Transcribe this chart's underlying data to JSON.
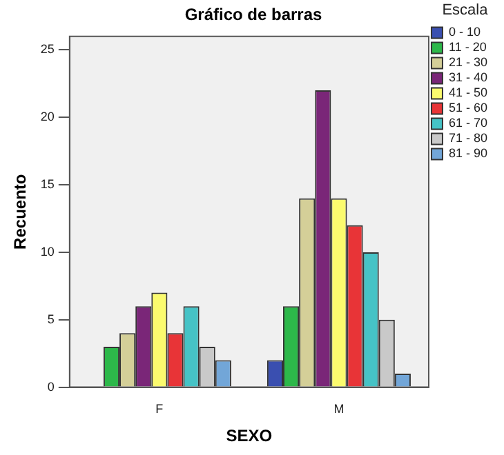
{
  "chart_data": {
    "type": "bar",
    "title": "Gráfico de barras",
    "xlabel": "SEXO",
    "ylabel": "Recuento",
    "legend_title": "Escala",
    "categories": [
      "F",
      "M"
    ],
    "series": [
      {
        "name": "0 - 10",
        "color": "#3a4fb0",
        "values": [
          null,
          2
        ]
      },
      {
        "name": "11 - 20",
        "color": "#2db84a",
        "values": [
          3,
          6
        ]
      },
      {
        "name": "21 - 30",
        "color": "#d4cf98",
        "values": [
          4,
          14
        ]
      },
      {
        "name": "31 - 40",
        "color": "#7a2678",
        "values": [
          6,
          22
        ]
      },
      {
        "name": "41 - 50",
        "color": "#fbfb6e",
        "values": [
          7,
          14
        ]
      },
      {
        "name": "51 - 60",
        "color": "#e83437",
        "values": [
          4,
          12
        ]
      },
      {
        "name": "61 - 70",
        "color": "#46c3c6",
        "values": [
          6,
          10
        ]
      },
      {
        "name": "71 - 80",
        "color": "#c9c9c9",
        "values": [
          3,
          5
        ]
      },
      {
        "name": "81 - 90",
        "color": "#72a6d8",
        "values": [
          2,
          1
        ]
      }
    ],
    "ylim": [
      0,
      26
    ],
    "yticks": [
      0,
      5,
      10,
      15,
      20,
      25
    ],
    "grid": false,
    "legend": "right"
  }
}
